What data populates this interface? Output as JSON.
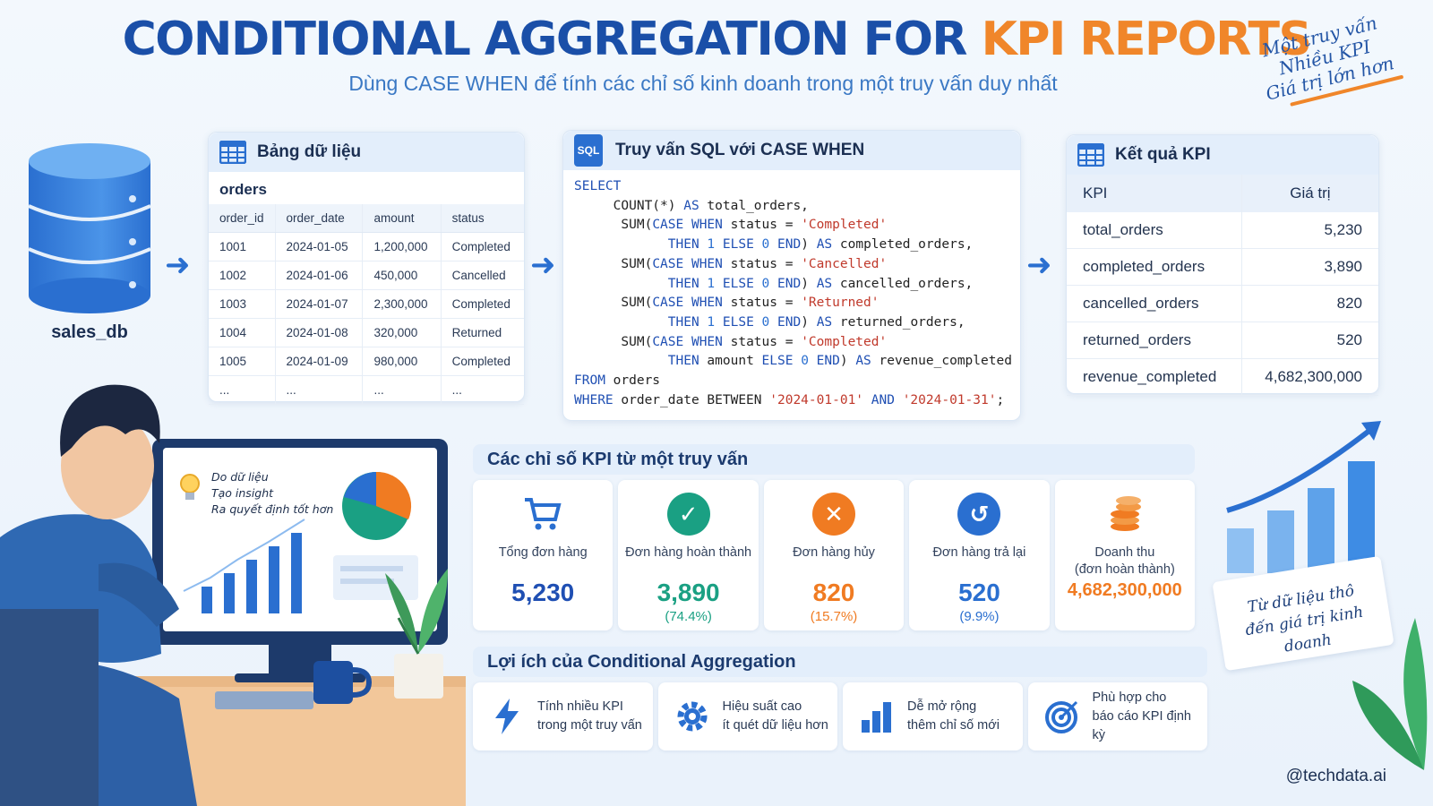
{
  "header": {
    "title_main": "CONDITIONAL AGGREGATION FOR ",
    "title_accent": "KPI REPORTS",
    "subtitle": "Dùng CASE WHEN để tính các chỉ số kinh doanh trong một truy vấn duy nhất",
    "handnote": [
      "Một truy vấn",
      "Nhiều KPI",
      "Giá trị lớn hơn"
    ]
  },
  "database": {
    "label": "sales_db"
  },
  "data_table": {
    "panel_title": "Bảng dữ liệu",
    "table_name": "orders",
    "columns": [
      "order_id",
      "order_date",
      "amount",
      "status"
    ],
    "rows": [
      [
        "1001",
        "2024-01-05",
        "1,200,000",
        "Completed"
      ],
      [
        "1002",
        "2024-01-06",
        "450,000",
        "Cancelled"
      ],
      [
        "1003",
        "2024-01-07",
        "2,300,000",
        "Completed"
      ],
      [
        "1004",
        "2024-01-08",
        "320,000",
        "Returned"
      ],
      [
        "1005",
        "2024-01-09",
        "980,000",
        "Completed"
      ],
      [
        "...",
        "...",
        "...",
        "..."
      ]
    ]
  },
  "sql": {
    "panel_title": "Truy vấn SQL với CASE WHEN",
    "icon_text": "SQL"
  },
  "kpi_result": {
    "panel_title": "Kết quả KPI",
    "columns": [
      "KPI",
      "Giá trị"
    ],
    "rows": [
      [
        "total_orders",
        "5,230"
      ],
      [
        "completed_orders",
        "3,890"
      ],
      [
        "cancelled_orders",
        "820"
      ],
      [
        "returned_orders",
        "520"
      ],
      [
        "revenue_completed",
        "4,682,300,000"
      ]
    ]
  },
  "kpi_cards": {
    "title": "Các chỉ số KPI từ một truy vấn",
    "items": [
      {
        "label": "Tổng đơn hàng",
        "value": "5,230",
        "pct": "",
        "color": "#1f4fb3",
        "icon": "cart-icon"
      },
      {
        "label": "Đơn hàng hoàn thành",
        "value": "3,890",
        "pct": "(74.4%)",
        "color": "#1aa083",
        "icon": "check-icon"
      },
      {
        "label": "Đơn hàng hủy",
        "value": "820",
        "pct": "(15.7%)",
        "color": "#f07b22",
        "icon": "x-icon"
      },
      {
        "label": "Đơn hàng trả lại",
        "value": "520",
        "pct": "(9.9%)",
        "color": "#2a6fd0",
        "icon": "return-icon"
      },
      {
        "label": "Doanh thu\n(đơn hoàn thành)",
        "value": "4,682,300,000",
        "pct": "",
        "color": "#f07b22",
        "icon": "coins-icon"
      }
    ]
  },
  "benefits": {
    "title": "Lợi ích của Conditional Aggregation",
    "items": [
      {
        "line1": "Tính nhiều KPI",
        "line2": "trong một truy vấn",
        "icon": "lightning-icon"
      },
      {
        "line1": "Hiệu suất cao",
        "line2": "ít quét dữ liệu hơn",
        "icon": "gear-icon"
      },
      {
        "line1": "Dễ mở rộng",
        "line2": "thêm chỉ số mới",
        "icon": "bar-chart-icon"
      },
      {
        "line1": "Phù hợp cho",
        "line2": "báo cáo KPI định kỳ",
        "icon": "target-icon"
      }
    ]
  },
  "monitor": {
    "lines": [
      "Do dữ liệu",
      "Tạo insight",
      "Ra quyết định tốt hơn"
    ]
  },
  "right_tag": [
    "Từ dữ liệu thô",
    "đến giá trị kinh doanh"
  ],
  "handle": "@techdata.ai",
  "colors": {
    "primary": "#1a4fa8",
    "accent": "#f0862a",
    "green": "#1aa083"
  }
}
